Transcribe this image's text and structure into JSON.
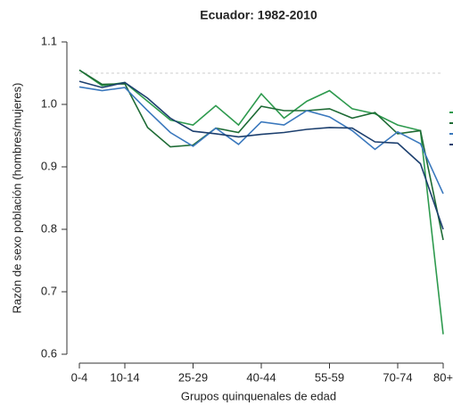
{
  "chart_data": {
    "type": "line",
    "title": "Ecuador: 1982-2010",
    "x_label": "Grupos quinquenales de edad",
    "y_label": "Razón de sexo población (hombres/mujeres)",
    "categories": [
      "0-4",
      null,
      "10-14",
      null,
      null,
      "25-29",
      null,
      null,
      "40-44",
      null,
      null,
      "55-59",
      null,
      null,
      "70-74",
      null,
      "80+"
    ],
    "ylim": [
      0.6,
      1.1
    ],
    "yticks": [
      0.6,
      0.7,
      0.8,
      0.9,
      {
        "value": 1,
        "label": "1.0"
      },
      1.1
    ],
    "reference_line": 1.05,
    "series": [
      {
        "color": "#2e9a4e",
        "values": [
          1.055,
          1.03,
          1.035,
          1.005,
          0.975,
          0.967,
          0.998,
          0.967,
          1.017,
          0.978,
          1.005,
          1.022,
          0.993,
          0.985,
          0.967,
          0.958,
          0.632
        ]
      },
      {
        "color": "#1e6b35",
        "values": [
          1.055,
          1.032,
          1.033,
          0.963,
          0.932,
          0.935,
          0.962,
          0.955,
          0.997,
          0.99,
          0.99,
          0.993,
          0.978,
          0.987,
          0.953,
          0.958,
          0.783
        ]
      },
      {
        "color": "#3a78bd",
        "values": [
          1.028,
          1.022,
          1.027,
          0.99,
          0.955,
          0.933,
          0.962,
          0.936,
          0.972,
          0.967,
          0.99,
          0.98,
          0.958,
          0.928,
          0.956,
          0.937,
          0.857
        ]
      },
      {
        "color": "#1c3f6e",
        "values": [
          1.037,
          1.027,
          1.035,
          1.01,
          0.978,
          0.957,
          0.953,
          0.948,
          0.952,
          0.955,
          0.96,
          0.963,
          0.962,
          0.94,
          0.938,
          0.905,
          0.8
        ]
      }
    ]
  }
}
